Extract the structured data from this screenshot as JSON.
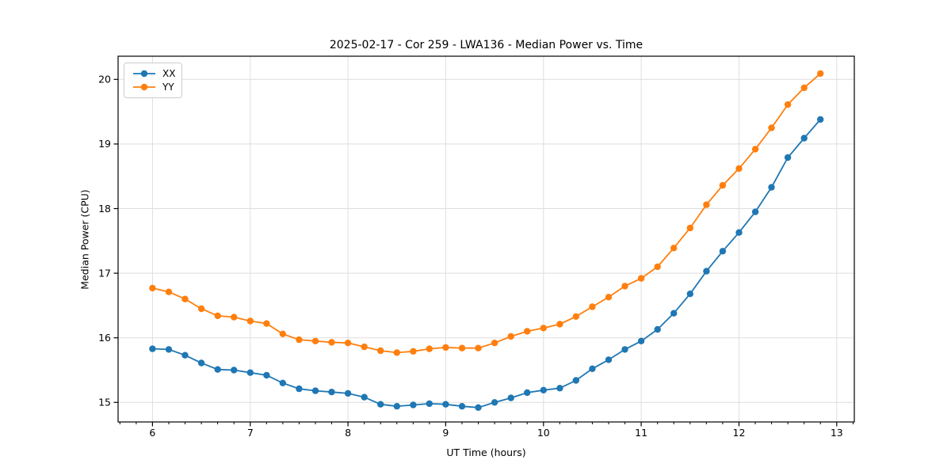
{
  "chart_data": {
    "type": "line",
    "title": "2025-02-17 - Cor 259 - LWA136 - Median Power vs. Time",
    "xlabel": "UT Time (hours)",
    "ylabel": "Median Power (CPU)",
    "xlim": [
      5.648,
      13.18
    ],
    "ylim": [
      14.697,
      20.359
    ],
    "x_ticks": [
      6,
      7,
      8,
      9,
      10,
      11,
      12,
      13
    ],
    "y_ticks": [
      15,
      16,
      17,
      18,
      19,
      20
    ],
    "x_minor_step_per_hour": 6,
    "grid": true,
    "grid_color": "#dedede",
    "axis_color": "#000000",
    "background": "#ffffff",
    "legend_position": "upper left",
    "marker": "o",
    "x": [
      6.0,
      6.167,
      6.333,
      6.5,
      6.667,
      6.833,
      7.0,
      7.167,
      7.333,
      7.5,
      7.667,
      7.833,
      8.0,
      8.167,
      8.333,
      8.5,
      8.667,
      8.833,
      9.0,
      9.167,
      9.333,
      9.5,
      9.667,
      9.833,
      10.0,
      10.167,
      10.333,
      10.5,
      10.667,
      10.833,
      11.0,
      11.167,
      11.333,
      11.5,
      11.667,
      11.833,
      12.0,
      12.167,
      12.333,
      12.5,
      12.667,
      12.833
    ],
    "series": [
      {
        "name": "XX",
        "color": "#1f77b4",
        "values": [
          15.83,
          15.82,
          15.73,
          15.61,
          15.51,
          15.5,
          15.46,
          15.42,
          15.3,
          15.21,
          15.18,
          15.16,
          15.14,
          15.08,
          14.97,
          14.94,
          14.96,
          14.98,
          14.97,
          14.94,
          14.92,
          15.0,
          15.07,
          15.15,
          15.19,
          15.22,
          15.34,
          15.52,
          15.66,
          15.82,
          15.95,
          16.13,
          16.38,
          16.68,
          17.03,
          17.34,
          17.63,
          17.95,
          18.33,
          18.79,
          19.09,
          19.38
        ]
      },
      {
        "name": "YY",
        "color": "#ff7f0e",
        "values": [
          16.77,
          16.71,
          16.6,
          16.45,
          16.34,
          16.32,
          16.26,
          16.22,
          16.06,
          15.97,
          15.95,
          15.93,
          15.92,
          15.86,
          15.8,
          15.77,
          15.79,
          15.83,
          15.85,
          15.84,
          15.84,
          15.92,
          16.02,
          16.1,
          16.15,
          16.21,
          16.33,
          16.48,
          16.63,
          16.8,
          16.92,
          17.1,
          17.39,
          17.7,
          18.06,
          18.36,
          18.62,
          18.92,
          19.25,
          19.61,
          19.87,
          20.09
        ]
      }
    ]
  }
}
